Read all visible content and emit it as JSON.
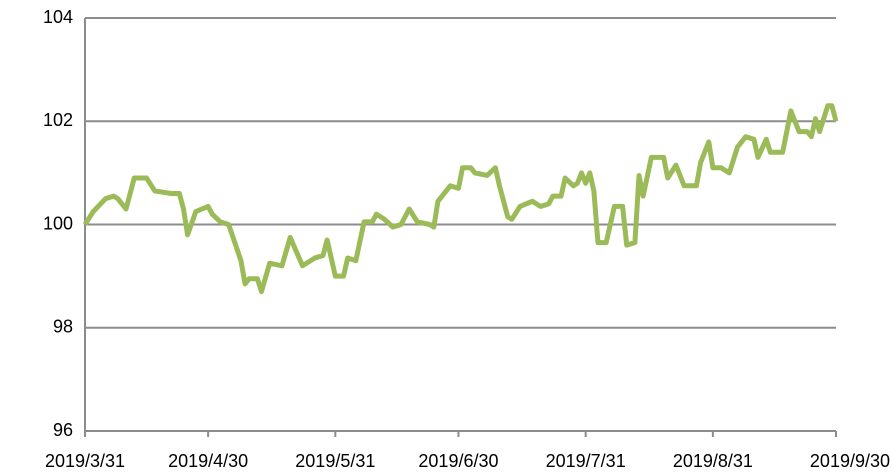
{
  "chart_data": {
    "type": "line",
    "x": [
      "2019/3/31",
      "2019/4/2",
      "2019/4/5",
      "2019/4/7",
      "2019/4/8",
      "2019/4/10",
      "2019/4/12",
      "2019/4/15",
      "2019/4/17",
      "2019/4/21",
      "2019/4/23",
      "2019/4/24",
      "2019/4/25",
      "2019/4/27",
      "2019/4/30",
      "2019/5/1",
      "2019/5/3",
      "2019/5/5",
      "2019/5/8",
      "2019/5/9",
      "2019/5/10",
      "2019/5/12",
      "2019/5/13",
      "2019/5/15",
      "2019/5/18",
      "2019/5/20",
      "2019/5/23",
      "2019/5/26",
      "2019/5/28",
      "2019/5/29",
      "2019/5/31",
      "2019/6/2",
      "2019/6/3",
      "2019/6/5",
      "2019/6/7",
      "2019/6/9",
      "2019/6/10",
      "2019/6/12",
      "2019/6/14",
      "2019/6/16",
      "2019/6/18",
      "2019/6/20",
      "2019/6/23",
      "2019/6/24",
      "2019/6/25",
      "2019/6/28",
      "2019/6/30",
      "2019/7/1",
      "2019/7/3",
      "2019/7/4",
      "2019/7/7",
      "2019/7/9",
      "2019/7/10",
      "2019/7/12",
      "2019/7/13",
      "2019/7/15",
      "2019/7/18",
      "2019/7/20",
      "2019/7/22",
      "2019/7/23",
      "2019/7/25",
      "2019/7/26",
      "2019/7/28",
      "2019/7/29",
      "2019/7/30",
      "2019/7/31",
      "2019/8/1",
      "2019/8/2",
      "2019/8/3",
      "2019/8/5",
      "2019/8/7",
      "2019/8/9",
      "2019/8/10",
      "2019/8/12",
      "2019/8/13",
      "2019/8/14",
      "2019/8/16",
      "2019/8/19",
      "2019/8/20",
      "2019/8/22",
      "2019/8/24",
      "2019/8/27",
      "2019/8/28",
      "2019/8/30",
      "2019/8/31",
      "2019/9/2",
      "2019/9/4",
      "2019/9/6",
      "2019/9/8",
      "2019/9/10",
      "2019/9/11",
      "2019/9/13",
      "2019/9/14",
      "2019/9/17",
      "2019/9/19",
      "2019/9/21",
      "2019/9/23",
      "2019/9/24",
      "2019/9/25",
      "2019/9/26",
      "2019/9/28",
      "2019/9/29",
      "2019/9/30"
    ],
    "series": [
      {
        "color": "#9bbb59",
        "values": [
          100.0,
          100.25,
          100.5,
          100.55,
          100.5,
          100.3,
          100.9,
          100.9,
          100.65,
          100.6,
          100.6,
          100.3,
          99.8,
          100.25,
          100.35,
          100.2,
          100.05,
          100.0,
          99.3,
          98.85,
          98.95,
          98.95,
          98.7,
          99.25,
          99.2,
          99.75,
          99.2,
          99.35,
          99.4,
          99.7,
          99.0,
          99.0,
          99.35,
          99.3,
          100.05,
          100.05,
          100.2,
          100.1,
          99.95,
          100.0,
          100.3,
          100.05,
          100.0,
          99.95,
          100.45,
          100.75,
          100.7,
          101.1,
          101.1,
          101.0,
          100.95,
          101.1,
          100.75,
          100.15,
          100.1,
          100.35,
          100.45,
          100.35,
          100.4,
          100.55,
          100.55,
          100.9,
          100.75,
          100.8,
          101.0,
          100.8,
          101.0,
          100.65,
          99.65,
          99.65,
          100.35,
          100.35,
          99.6,
          99.65,
          100.95,
          100.55,
          101.3,
          101.3,
          100.9,
          101.15,
          100.75,
          100.75,
          101.2,
          101.6,
          101.1,
          101.1,
          101.0,
          101.5,
          101.7,
          101.65,
          101.3,
          101.65,
          101.4,
          101.4,
          102.2,
          101.8,
          101.8,
          101.7,
          102.05,
          101.8,
          102.3,
          102.3,
          102.0
        ]
      }
    ],
    "xlim": [
      "2019/3/31",
      "2019/9/30"
    ],
    "xticks": [
      "2019/3/31",
      "2019/4/30",
      "2019/5/31",
      "2019/6/30",
      "2019/7/31",
      "2019/8/31",
      "2019/9/30"
    ],
    "ylim": [
      96,
      104
    ],
    "yticks": [
      96,
      98,
      100,
      102,
      104
    ],
    "grid": true
  }
}
